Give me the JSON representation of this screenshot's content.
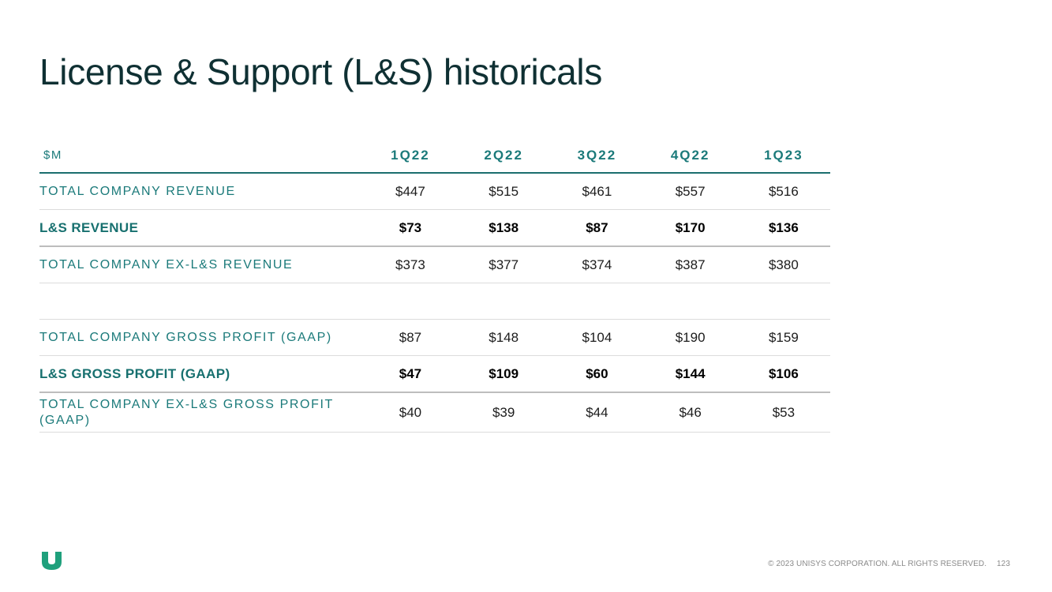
{
  "title": "License & Support (L&S) historicals",
  "table": {
    "unit_label": "$M",
    "columns": [
      "1Q22",
      "2Q22",
      "3Q22",
      "4Q22",
      "1Q23"
    ],
    "rows": [
      {
        "label": "TOTAL COMPANY REVENUE",
        "values": [
          "$447",
          "$515",
          "$461",
          "$557",
          "$516"
        ]
      },
      {
        "label": "L&S REVENUE",
        "values": [
          "$73",
          "$138",
          "$87",
          "$170",
          "$136"
        ]
      },
      {
        "label": "TOTAL COMPANY EX-L&S REVENUE",
        "values": [
          "$373",
          "$377",
          "$374",
          "$387",
          "$380"
        ]
      },
      {
        "label": "TOTAL COMPANY GROSS PROFIT (GAAP)",
        "values": [
          "$87",
          "$148",
          "$104",
          "$190",
          "$159"
        ]
      },
      {
        "label": "L&S GROSS PROFIT (GAAP)",
        "values": [
          "$47",
          "$109",
          "$60",
          "$144",
          "$106"
        ]
      },
      {
        "label": "TOTAL COMPANY EX-L&S GROSS PROFIT (GAAP)",
        "values": [
          "$40",
          "$39",
          "$44",
          "$46",
          "$53"
        ]
      }
    ]
  },
  "footer": {
    "copyright": "© 2023 UNISYS CORPORATION. ALL RIGHTS RESERVED.",
    "page_number": "123"
  },
  "colors": {
    "accent": "#1b7a7a",
    "title": "#0f3033",
    "logo": "#1fa07c"
  }
}
